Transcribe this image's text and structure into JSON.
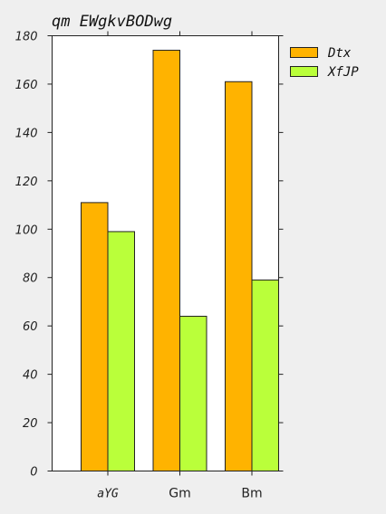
{
  "chart_data": {
    "type": "bar",
    "title": "qm EWgkvBODwg",
    "categories": [
      "aYG",
      "Gm",
      "Bm"
    ],
    "series": [
      {
        "name": "Dtx",
        "values": [
          111,
          174,
          161
        ],
        "color": "#ffb300"
      },
      {
        "name": "XfJP",
        "values": [
          99,
          64,
          79
        ],
        "color": "#baff3a"
      }
    ],
    "xlabel": "",
    "ylabel": "",
    "ylim": [
      0,
      180
    ],
    "yticks": [
      0,
      20,
      40,
      60,
      80,
      100,
      120,
      140,
      160,
      180
    ],
    "grid": false,
    "legend_position": "outside-top-right"
  }
}
